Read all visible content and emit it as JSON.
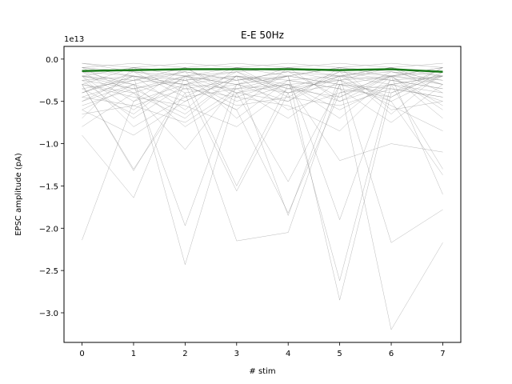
{
  "chart_data": {
    "type": "line",
    "title": "E-E 50Hz",
    "xlabel": "# stim",
    "ylabel": "EPSC amplitude (pA)",
    "y_offset_label": "1e13",
    "xlim": [
      -0.35,
      7.35
    ],
    "ylim": [
      -3.35,
      0.15
    ],
    "grid": false,
    "x": [
      0,
      1,
      2,
      3,
      4,
      5,
      6,
      7
    ],
    "x_ticks": [
      "0",
      "1",
      "2",
      "3",
      "4",
      "5",
      "6",
      "7"
    ],
    "y_tick_values": [
      0.0,
      -0.5,
      -1.0,
      -1.5,
      -2.0,
      -2.5,
      -3.0
    ],
    "y_ticks": [
      "0.0",
      "−0.5",
      "−1.0",
      "−1.5",
      "−2.0",
      "−2.5",
      "−3.0"
    ],
    "colors": {
      "traces": "#808080",
      "mean": "#1a7a1a"
    },
    "mean_series": {
      "values": [
        -0.14,
        -0.13,
        -0.12,
        -0.12,
        -0.12,
        -0.13,
        -0.12,
        -0.15
      ]
    },
    "trace_series": [
      {
        "values": [
          -2.14,
          -0.5,
          -0.3,
          -0.2,
          -0.4,
          -0.3,
          -0.2,
          -0.3
        ]
      },
      {
        "values": [
          -0.9,
          -1.64,
          -0.2,
          -0.3,
          -0.5,
          -0.2,
          -0.1,
          -0.4
        ]
      },
      {
        "values": [
          -0.5,
          -0.2,
          -2.43,
          -0.4,
          -0.3,
          -0.5,
          -0.2,
          -0.1
        ]
      },
      {
        "values": [
          -0.3,
          -1.3,
          -0.4,
          -2.15,
          -2.05,
          -0.3,
          -3.2,
          -2.17
        ]
      },
      {
        "values": [
          -0.2,
          -0.3,
          -1.97,
          -0.3,
          -0.2,
          -2.85,
          -0.4,
          -0.2
        ]
      },
      {
        "values": [
          -0.4,
          -0.2,
          -0.3,
          -1.56,
          -0.4,
          -2.62,
          -0.3,
          -0.5
        ]
      },
      {
        "values": [
          -0.6,
          -0.9,
          -0.5,
          -0.2,
          -1.85,
          -0.2,
          -2.17,
          -1.78
        ]
      },
      {
        "values": [
          -0.3,
          -1.32,
          -0.3,
          -0.6,
          -1.82,
          -0.4,
          -0.3,
          -1.3
        ]
      },
      {
        "values": [
          -0.8,
          -0.4,
          -1.07,
          -0.3,
          -0.2,
          -1.9,
          -0.2,
          -1.6
        ]
      },
      {
        "values": [
          -0.2,
          -0.6,
          -0.2,
          -1.5,
          -0.3,
          -1.2,
          -1.0,
          -1.1
        ]
      },
      {
        "values": [
          -0.5,
          -0.3,
          -0.8,
          -0.4,
          -1.45,
          -0.3,
          -0.5,
          -1.37
        ]
      },
      {
        "values": [
          -0.1,
          -0.2,
          -0.3,
          -0.1,
          -0.2,
          -0.1,
          -0.2,
          -0.1
        ]
      },
      {
        "values": [
          -0.3,
          -0.4,
          -0.2,
          -0.5,
          -0.3,
          -0.6,
          -0.3,
          -0.4
        ]
      },
      {
        "values": [
          -0.2,
          -0.1,
          -0.4,
          -0.3,
          -0.1,
          -0.2,
          -0.5,
          -0.2
        ]
      },
      {
        "values": [
          -0.6,
          -0.3,
          -0.5,
          -0.2,
          -0.6,
          -0.4,
          -0.2,
          -0.7
        ]
      },
      {
        "values": [
          -0.15,
          -0.5,
          -0.1,
          -0.4,
          -0.2,
          -0.3,
          -0.4,
          -0.1
        ]
      },
      {
        "values": [
          -0.4,
          -0.2,
          -0.6,
          -0.1,
          -0.4,
          -0.2,
          -0.1,
          -0.3
        ]
      },
      {
        "values": [
          -0.25,
          -0.7,
          -0.3,
          -0.6,
          -0.1,
          -0.5,
          -0.3,
          -0.2
        ]
      },
      {
        "values": [
          -0.7,
          -0.1,
          -0.2,
          -0.4,
          -0.5,
          -0.1,
          -0.6,
          -0.5
        ]
      },
      {
        "values": [
          -0.1,
          -0.4,
          -0.7,
          -0.2,
          -0.3,
          -0.7,
          -0.2,
          -0.6
        ]
      },
      {
        "values": [
          -0.35,
          -0.25,
          -0.15,
          -0.7,
          -0.25,
          -0.35,
          -0.75,
          -0.3
        ]
      },
      {
        "values": [
          -0.05,
          -0.15,
          -0.25,
          -0.15,
          -0.35,
          -0.15,
          -0.25,
          -0.35
        ]
      },
      {
        "values": [
          -0.45,
          -0.55,
          -0.35,
          -0.25,
          -0.15,
          -0.45,
          -0.15,
          -0.25
        ]
      },
      {
        "values": [
          -0.2,
          -0.8,
          -0.45,
          -0.35,
          -0.7,
          -0.25,
          -0.45,
          -0.15
        ]
      },
      {
        "values": [
          -0.55,
          -0.35,
          -0.25,
          -0.55,
          -0.45,
          -0.55,
          -0.35,
          -0.45
        ]
      },
      {
        "values": [
          -0.1,
          -0.05,
          -0.1,
          -0.05,
          -0.1,
          -0.05,
          -0.1,
          -0.05
        ]
      },
      {
        "values": [
          -0.3,
          -0.45,
          -0.55,
          -0.8,
          -0.35,
          -0.25,
          -0.55,
          -0.85
        ]
      },
      {
        "values": [
          -0.25,
          -0.2,
          -0.35,
          -0.45,
          -0.55,
          -0.85,
          -0.25,
          -0.35
        ]
      },
      {
        "values": [
          -0.65,
          -0.55,
          -0.75,
          -0.35,
          -0.2,
          -0.3,
          -0.35,
          -0.45
        ]
      },
      {
        "values": [
          -0.15,
          -0.3,
          -0.15,
          -0.25,
          -0.15,
          -0.2,
          -0.15,
          -0.2
        ]
      },
      {
        "values": [
          -0.4,
          -0.15,
          -0.45,
          -0.15,
          -0.45,
          -0.15,
          -0.65,
          -0.15
        ]
      },
      {
        "values": [
          -0.2,
          -0.25,
          -0.3,
          -0.35,
          -0.3,
          -0.25,
          -0.2,
          -0.25
        ]
      },
      {
        "values": [
          -0.05,
          -0.1,
          -0.05,
          -0.1,
          -0.05,
          -0.1,
          -0.05,
          -0.1
        ]
      },
      {
        "values": [
          -0.35,
          -0.65,
          -0.2,
          -0.3,
          -0.4,
          -0.2,
          -0.3,
          -0.2
        ]
      },
      {
        "values": [
          -0.25,
          -0.35,
          -0.65,
          -0.2,
          -0.35,
          -0.45,
          -0.2,
          -0.55
        ]
      },
      {
        "values": [
          -0.15,
          -0.2,
          -0.25,
          -0.2,
          -0.25,
          -0.2,
          -0.25,
          -0.2
        ]
      },
      {
        "values": [
          -0.1,
          -0.15,
          -0.2,
          -0.15,
          -0.1,
          -0.15,
          -0.2,
          -0.15
        ]
      },
      {
        "values": [
          -0.3,
          -0.1,
          -0.15,
          -0.25,
          -0.2,
          -0.1,
          -0.15,
          -0.3
        ]
      },
      {
        "values": [
          -0.45,
          -0.25,
          -0.1,
          -0.45,
          -0.25,
          -0.35,
          -0.45,
          -0.1
        ]
      },
      {
        "values": [
          -0.2,
          -0.35,
          -0.2,
          -0.1,
          -0.15,
          -0.25,
          -0.1,
          -0.2
        ]
      }
    ]
  }
}
